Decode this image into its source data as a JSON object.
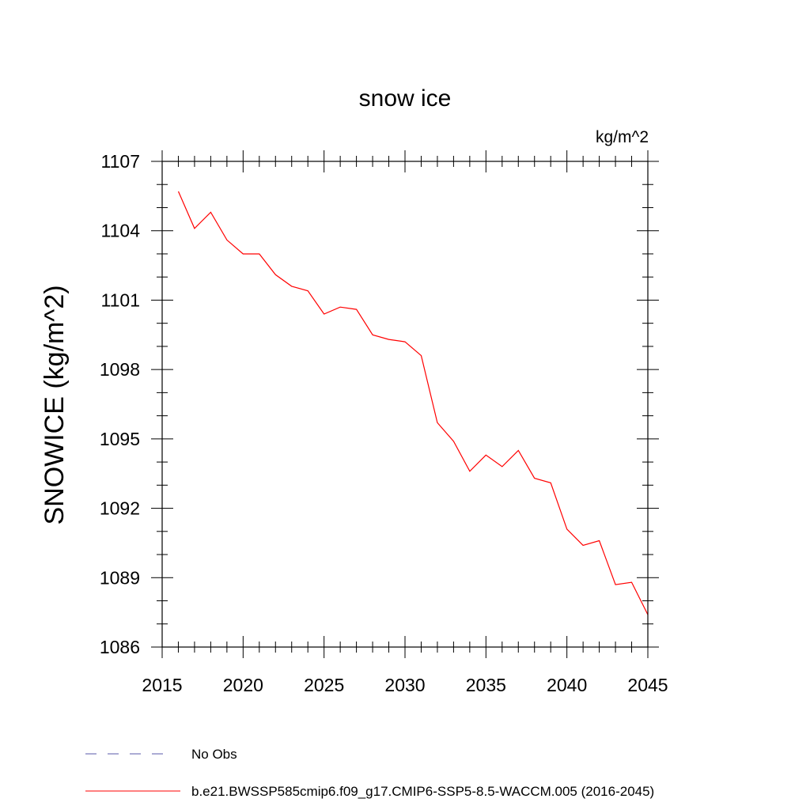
{
  "chart_data": {
    "type": "line",
    "title": "snow ice",
    "units": "kg/m^2",
    "ylabel": "SNOWICE  (kg/m^2)",
    "xlabel": "",
    "xlim": [
      2015,
      2045
    ],
    "ylim": [
      1086,
      1107
    ],
    "x_ticks": [
      "2015",
      "2020",
      "2025",
      "2030",
      "2035",
      "2040",
      "2045"
    ],
    "y_ticks": [
      "1086",
      "1089",
      "1092",
      "1095",
      "1098",
      "1101",
      "1104",
      "1107"
    ],
    "grid": false,
    "series": [
      {
        "name": "b.e21.BWSSP585cmip6.f09_g17.CMIP6-SSP5-8.5-WACCM.005 (2016-2045)",
        "color": "#ff0000",
        "style": "solid",
        "x": [
          2016,
          2017,
          2018,
          2019,
          2020,
          2021,
          2022,
          2023,
          2024,
          2025,
          2026,
          2027,
          2028,
          2029,
          2030,
          2031,
          2032,
          2033,
          2034,
          2035,
          2036,
          2037,
          2038,
          2039,
          2040,
          2041,
          2042,
          2043,
          2044,
          2045
        ],
        "y": [
          1105.7,
          1104.1,
          1104.8,
          1103.6,
          1103.0,
          1103.0,
          1102.1,
          1101.6,
          1101.4,
          1100.4,
          1100.7,
          1100.6,
          1099.5,
          1099.3,
          1099.2,
          1098.6,
          1095.7,
          1094.9,
          1093.6,
          1094.3,
          1093.8,
          1094.5,
          1093.3,
          1093.1,
          1091.1,
          1090.4,
          1090.6,
          1088.7,
          1088.8,
          1087.4
        ]
      }
    ],
    "legend": {
      "placement": "bottom",
      "entries": [
        {
          "label": "No Obs",
          "color": "#5a5aa8",
          "style": "dashed"
        },
        {
          "label": "b.e21.BWSSP585cmip6.f09_g17.CMIP6-SSP5-8.5-WACCM.005 (2016-2045)",
          "color": "#ff0000",
          "style": "solid"
        }
      ]
    }
  }
}
